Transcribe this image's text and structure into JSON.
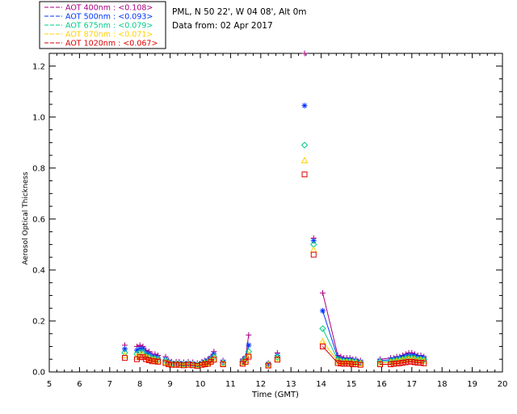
{
  "chart_data": {
    "type": "scatter",
    "title": "PML, N 50 22', W 04 08', Alt 0m",
    "subtitle": "Data from: 02 Apr 2017",
    "xlabel": "Time (GMT)",
    "ylabel": "Aerosol Optical Thickness",
    "xlim": [
      5,
      20
    ],
    "ylim": [
      0,
      1.25
    ],
    "x_ticks": [
      "5",
      "6",
      "7",
      "8",
      "9",
      "10",
      "11",
      "12",
      "13",
      "14",
      "15",
      "16",
      "17",
      "18",
      "19",
      "20"
    ],
    "y_ticks": [
      "0.0",
      "0.2",
      "0.4",
      "0.6",
      "0.8",
      "1.0",
      "1.2"
    ],
    "grid": false,
    "legend_position": "top-left outside",
    "x": [
      7.5,
      7.9,
      8.0,
      8.1,
      8.2,
      8.3,
      8.4,
      8.5,
      8.6,
      8.85,
      8.95,
      9.05,
      9.2,
      9.3,
      9.45,
      9.6,
      9.75,
      9.9,
      10.05,
      10.15,
      10.25,
      10.35,
      10.45,
      10.75,
      11.4,
      11.5,
      11.6,
      12.25,
      12.55,
      13.45,
      13.75,
      14.05,
      14.55,
      14.65,
      14.75,
      14.85,
      14.95,
      15.05,
      15.15,
      15.3,
      15.95,
      16.3,
      16.4,
      16.5,
      16.6,
      16.7,
      16.8,
      16.9,
      17.0,
      17.1,
      17.2,
      17.3,
      17.4
    ],
    "series": [
      {
        "name": "AOT  400nm : <0.108>",
        "marker": "plus",
        "color": "#aa0080",
        "values": [
          0.105,
          0.1,
          0.105,
          0.1,
          0.085,
          0.08,
          0.07,
          0.07,
          0.065,
          0.06,
          0.045,
          0.04,
          0.04,
          0.04,
          0.038,
          0.04,
          0.038,
          0.035,
          0.04,
          0.045,
          0.05,
          0.06,
          0.08,
          0.045,
          0.05,
          0.06,
          0.145,
          0.035,
          0.075,
          1.25,
          0.525,
          0.31,
          0.065,
          0.06,
          0.055,
          0.055,
          0.055,
          0.05,
          0.05,
          0.045,
          0.05,
          0.055,
          0.055,
          0.06,
          0.06,
          0.065,
          0.07,
          0.075,
          0.075,
          0.07,
          0.065,
          0.065,
          0.06
        ]
      },
      {
        "name": "AOT  500nm : <0.093>",
        "marker": "asterisk",
        "color": "#0033ff",
        "values": [
          0.09,
          0.085,
          0.09,
          0.09,
          0.075,
          0.07,
          0.06,
          0.06,
          0.055,
          0.05,
          0.04,
          0.035,
          0.035,
          0.035,
          0.033,
          0.035,
          0.033,
          0.03,
          0.035,
          0.04,
          0.045,
          0.055,
          0.07,
          0.04,
          0.045,
          0.055,
          0.105,
          0.032,
          0.065,
          1.045,
          0.515,
          0.24,
          0.055,
          0.05,
          0.048,
          0.048,
          0.048,
          0.045,
          0.045,
          0.04,
          0.045,
          0.048,
          0.05,
          0.052,
          0.055,
          0.058,
          0.062,
          0.065,
          0.065,
          0.062,
          0.058,
          0.058,
          0.055
        ]
      },
      {
        "name": "AOT  675nm : <0.079>",
        "marker": "diamond",
        "color": "#00cc88",
        "values": [
          0.075,
          0.07,
          0.078,
          0.078,
          0.065,
          0.06,
          0.052,
          0.052,
          0.048,
          0.044,
          0.036,
          0.032,
          0.032,
          0.032,
          0.03,
          0.032,
          0.03,
          0.028,
          0.032,
          0.036,
          0.04,
          0.048,
          0.06,
          0.036,
          0.04,
          0.05,
          0.08,
          0.03,
          0.058,
          0.89,
          0.5,
          0.17,
          0.048,
          0.044,
          0.042,
          0.042,
          0.042,
          0.04,
          0.04,
          0.036,
          0.04,
          0.042,
          0.044,
          0.046,
          0.048,
          0.05,
          0.054,
          0.056,
          0.056,
          0.054,
          0.05,
          0.05,
          0.048
        ]
      },
      {
        "name": "AOT  870nm : <0.071>",
        "marker": "triangle",
        "color": "#ffd000",
        "values": [
          0.065,
          0.06,
          0.068,
          0.068,
          0.058,
          0.054,
          0.048,
          0.048,
          0.044,
          0.04,
          0.033,
          0.03,
          0.03,
          0.03,
          0.028,
          0.03,
          0.028,
          0.026,
          0.03,
          0.033,
          0.036,
          0.044,
          0.054,
          0.033,
          0.036,
          0.046,
          0.068,
          0.028,
          0.054,
          0.83,
          0.48,
          0.12,
          0.043,
          0.04,
          0.038,
          0.038,
          0.038,
          0.036,
          0.036,
          0.033,
          0.036,
          0.038,
          0.04,
          0.042,
          0.044,
          0.046,
          0.049,
          0.05,
          0.05,
          0.049,
          0.046,
          0.046,
          0.044
        ]
      },
      {
        "name": "AOT 1020nm : <0.067>",
        "marker": "square",
        "color": "#dd0000",
        "values": [
          0.055,
          0.05,
          0.058,
          0.058,
          0.05,
          0.046,
          0.042,
          0.042,
          0.04,
          0.035,
          0.03,
          0.028,
          0.028,
          0.028,
          0.026,
          0.028,
          0.026,
          0.024,
          0.028,
          0.03,
          0.032,
          0.04,
          0.048,
          0.03,
          0.032,
          0.04,
          0.06,
          0.025,
          0.048,
          0.775,
          0.46,
          0.1,
          0.035,
          0.033,
          0.032,
          0.032,
          0.032,
          0.03,
          0.03,
          0.028,
          0.03,
          0.03,
          0.032,
          0.033,
          0.034,
          0.036,
          0.038,
          0.04,
          0.04,
          0.038,
          0.036,
          0.036,
          0.034
        ]
      }
    ]
  }
}
